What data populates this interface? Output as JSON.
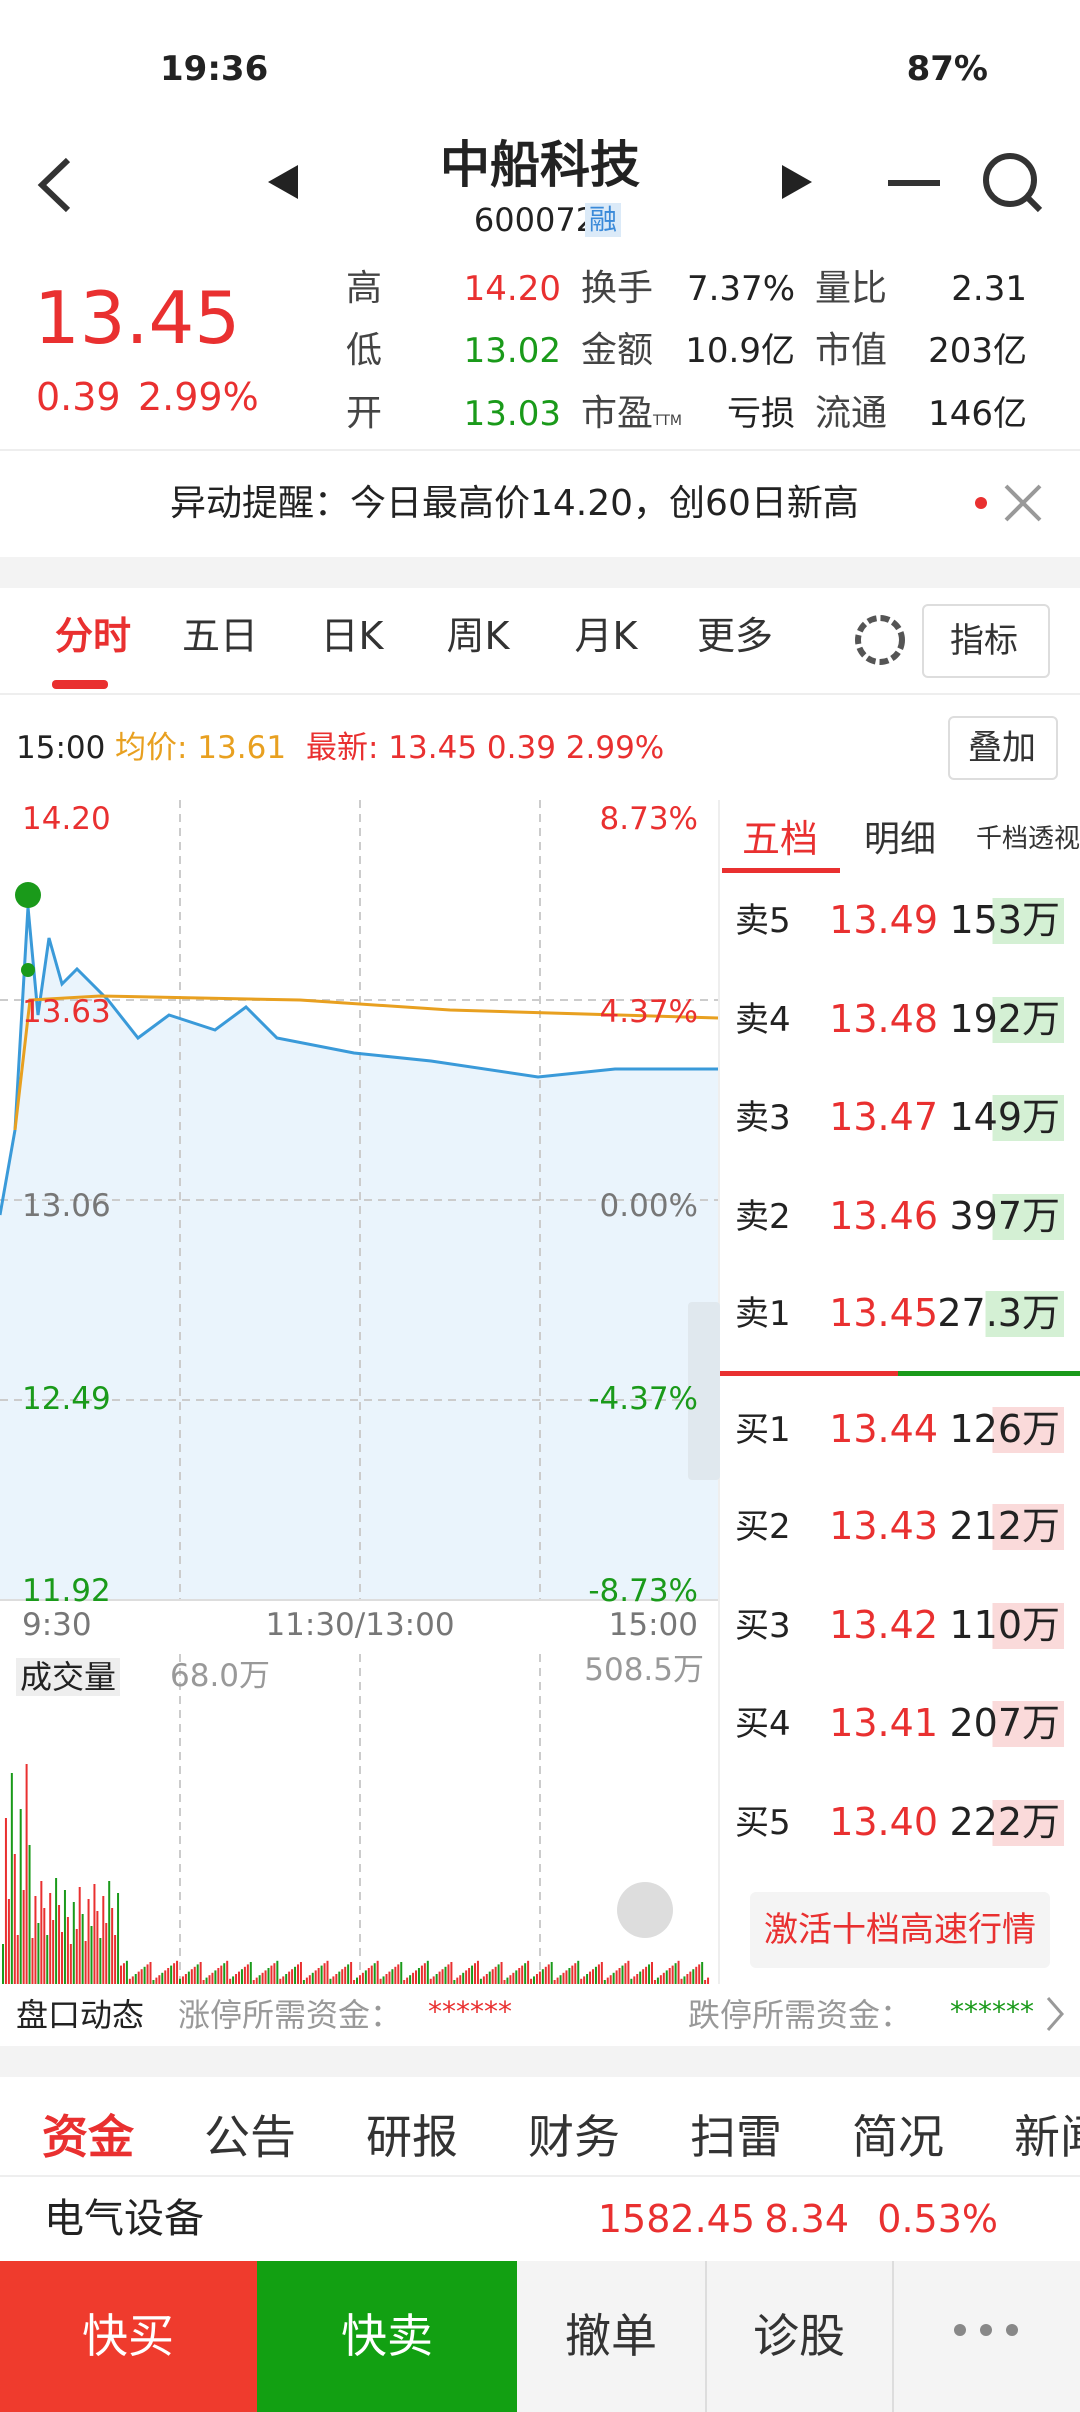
{
  "status_bar": {
    "time": "19:36",
    "battery": "87%"
  },
  "header": {
    "title": "中船科技",
    "code": "600072",
    "badge": "融"
  },
  "quote": {
    "price": "13.45",
    "change": "0.39",
    "change_pct": "2.99%",
    "stats": [
      [
        {
          "label": "高",
          "value": "14.20"
        },
        {
          "label": "换手",
          "value": "7.37%"
        },
        {
          "label": "量比",
          "value": "2.31"
        }
      ],
      [
        {
          "label": "低",
          "value": "13.02"
        },
        {
          "label": "金额",
          "value": "10.9亿"
        },
        {
          "label": "市值",
          "value": "203亿"
        }
      ],
      [
        {
          "label": "开",
          "value": "13.03"
        },
        {
          "label": "市盈",
          "label_suffix": "TTM",
          "value": "亏损"
        },
        {
          "label": "流通",
          "value": "146亿"
        }
      ]
    ]
  },
  "alert": {
    "text": "异动提醒：今日最高价14.20，创60日新高"
  },
  "chart_tabs": [
    "分时",
    "五日",
    "日K",
    "周K",
    "月K",
    "更多"
  ],
  "indicator_button": "指标",
  "info": {
    "time": "15:00",
    "avg": "均价: 13.61",
    "latest": "最新: 13.45 0.39 2.99%",
    "overlay": "叠加"
  },
  "intraday": {
    "price_labels": [
      "14.20",
      "13.63",
      "13.06",
      "12.49",
      "11.92"
    ],
    "pct_labels": [
      "8.73%",
      "4.37%",
      "0.00%",
      "-4.37%",
      "-8.73%"
    ],
    "time_labels": [
      "9:30",
      "11:30/13:00",
      "15:00"
    ],
    "volume_label": "成交量",
    "volume_value": "68.0万",
    "volume_max": "508.5万"
  },
  "order_book": {
    "tabs": [
      "五档",
      "明细",
      "千档透视"
    ],
    "asks": [
      {
        "label": "卖5",
        "price": "13.49",
        "volume": "153万"
      },
      {
        "label": "卖4",
        "price": "13.48",
        "volume": "192万"
      },
      {
        "label": "卖3",
        "price": "13.47",
        "volume": "149万"
      },
      {
        "label": "卖2",
        "price": "13.46",
        "volume": "397万"
      },
      {
        "label": "卖1",
        "price": "13.45",
        "volume": "27.3万"
      }
    ],
    "bids": [
      {
        "label": "买1",
        "price": "13.44",
        "volume": "126万"
      },
      {
        "label": "买2",
        "price": "13.43",
        "volume": "212万"
      },
      {
        "label": "买3",
        "price": "13.42",
        "volume": "110万"
      },
      {
        "label": "买4",
        "price": "13.41",
        "volume": "207万"
      },
      {
        "label": "买5",
        "price": "13.40",
        "volume": "222万"
      }
    ],
    "button": "激活十档高速行情"
  },
  "pankou": {
    "title": "盘口动态",
    "limit_up": "涨停所需资金：",
    "limit_up_value": "******",
    "limit_down": "跌停所需资金：",
    "limit_down_value": "******"
  },
  "info_tabs": [
    "资金",
    "公告",
    "研报",
    "财务",
    "扫雷",
    "简况",
    "新闻"
  ],
  "sector": {
    "name": "电气设备",
    "price": "1582.45",
    "change": "8.34",
    "change_pct": "0.53%"
  },
  "actions": [
    "快买",
    "快卖",
    "撤单",
    "诊股"
  ]
}
